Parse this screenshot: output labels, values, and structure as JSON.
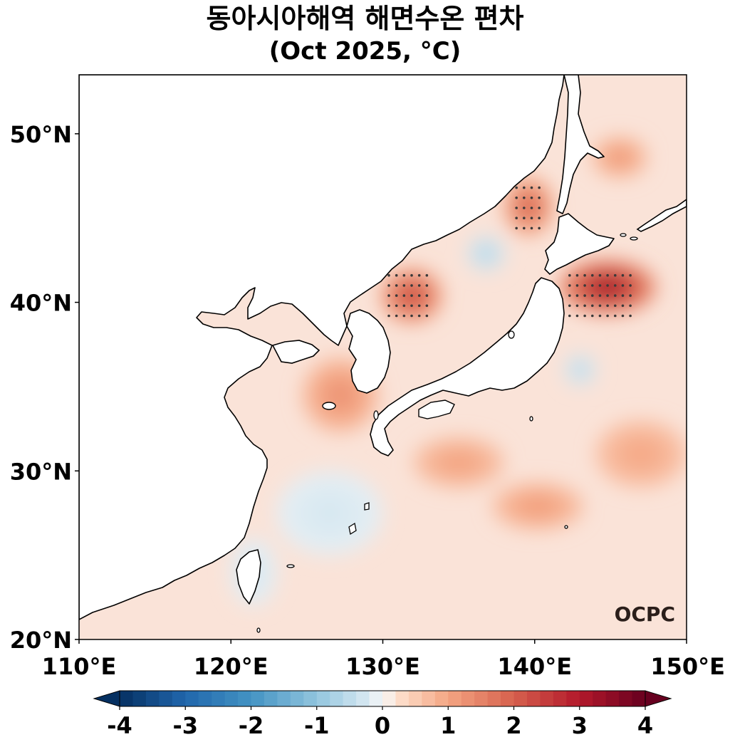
{
  "title_line1": "동아시아해역 해면수온 편차",
  "title_line2": "(Oct 2025, °C)",
  "map": {
    "lon_range": [
      110,
      150
    ],
    "lat_range": [
      20,
      53.5
    ],
    "x_ticks": [
      {
        "value": 110,
        "label": "110°E"
      },
      {
        "value": 120,
        "label": "120°E"
      },
      {
        "value": 130,
        "label": "130°E"
      },
      {
        "value": 140,
        "label": "140°E"
      },
      {
        "value": 150,
        "label": "150°E"
      }
    ],
    "y_ticks": [
      {
        "value": 20,
        "label": "20°N"
      },
      {
        "value": 30,
        "label": "30°N"
      },
      {
        "value": 40,
        "label": "40°N"
      },
      {
        "value": 50,
        "label": "50°N"
      }
    ],
    "ocean_base_color": "#fae3d8",
    "land_color": "#ffffff",
    "coast_color": "#000000",
    "anomaly_features": [
      {
        "lon": 144.8,
        "lat": 40.9,
        "rx": 3.2,
        "ry": 1.6,
        "value": 4.0
      },
      {
        "lon": 131.9,
        "lat": 40.4,
        "rx": 2.0,
        "ry": 1.6,
        "value": 2.9
      },
      {
        "lon": 139.6,
        "lat": 45.7,
        "rx": 1.6,
        "ry": 1.7,
        "value": 2.4
      },
      {
        "lon": 127.2,
        "lat": 34.5,
        "rx": 2.5,
        "ry": 2.2,
        "value": 1.5
      },
      {
        "lon": 145.6,
        "lat": 48.6,
        "rx": 1.8,
        "ry": 1.2,
        "value": 1.4
      },
      {
        "lon": 140.2,
        "lat": 27.9,
        "rx": 3.0,
        "ry": 1.4,
        "value": 1.3
      },
      {
        "lon": 135.0,
        "lat": 30.5,
        "rx": 3.0,
        "ry": 1.5,
        "value": 1.2
      },
      {
        "lon": 147.0,
        "lat": 31.0,
        "rx": 3.0,
        "ry": 2.0,
        "value": 1.1
      },
      {
        "lon": 136.8,
        "lat": 42.9,
        "rx": 1.2,
        "ry": 1.0,
        "value": -0.8
      },
      {
        "lon": 143.0,
        "lat": 36.0,
        "rx": 1.0,
        "ry": 0.9,
        "value": -0.7
      },
      {
        "lon": 126.5,
        "lat": 27.5,
        "rx": 3.5,
        "ry": 2.5,
        "value": -0.3
      },
      {
        "lon": 121.5,
        "lat": 24.0,
        "rx": 1.5,
        "ry": 2.0,
        "value": -0.3
      }
    ],
    "significance_regions": [
      {
        "lon_min": 142.3,
        "lon_max": 146.3,
        "lat_min": 39.2,
        "lat_max": 41.6
      },
      {
        "lon_min": 130.4,
        "lon_max": 133.2,
        "lat_min": 39.2,
        "lat_max": 41.6
      },
      {
        "lon_min": 138.8,
        "lon_max": 140.5,
        "lat_min": 44.4,
        "lat_max": 46.9
      }
    ],
    "logo_text": "OCPC"
  },
  "colorbar": {
    "min": -4,
    "max": 4,
    "tick_labels": [
      "-4",
      "-3",
      "-2",
      "-1",
      "0",
      "1",
      "2",
      "3",
      "4"
    ],
    "colormap": "RdBu_r",
    "extend": "both"
  }
}
